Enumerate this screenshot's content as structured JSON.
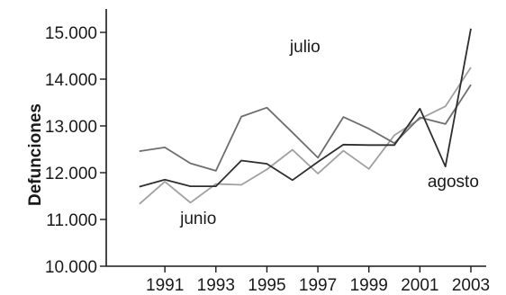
{
  "chart_data": {
    "type": "line",
    "title": "",
    "xlabel": "",
    "ylabel": "Defunciones",
    "x": [
      1990,
      1991,
      1992,
      1993,
      1994,
      1995,
      1996,
      1997,
      1998,
      1999,
      2000,
      2001,
      2002,
      2003
    ],
    "x_tick_labels": [
      "1991",
      "1993",
      "1995",
      "1997",
      "1999",
      "2001",
      "2003"
    ],
    "x_tick_values": [
      1991,
      1993,
      1995,
      1997,
      1999,
      2001,
      2003
    ],
    "y_tick_labels": [
      "10.000",
      "11.000",
      "12.000",
      "13.000",
      "14.000",
      "15.000"
    ],
    "y_tick_values": [
      10000,
      11000,
      12000,
      13000,
      14000,
      15000
    ],
    "ylim": [
      10000,
      15500
    ],
    "xlim": [
      1988.7,
      2003.6
    ],
    "grid": false,
    "series": [
      {
        "name": "junio",
        "color": "#a0a0a0",
        "values": [
          11330,
          11810,
          11360,
          11760,
          11740,
          12070,
          12490,
          11980,
          12470,
          12080,
          12800,
          13150,
          13420,
          14250
        ]
      },
      {
        "name": "julio",
        "color": "#6e6e6e",
        "values": [
          12460,
          12540,
          12200,
          12040,
          13200,
          13390,
          12860,
          12320,
          13190,
          12940,
          12630,
          13180,
          13040,
          13880
        ]
      },
      {
        "name": "agosto",
        "color": "#2e2e2e",
        "values": [
          11700,
          11850,
          11710,
          11710,
          12260,
          12190,
          11840,
          12230,
          12600,
          12590,
          12590,
          13370,
          12130,
          15080
        ]
      }
    ]
  }
}
